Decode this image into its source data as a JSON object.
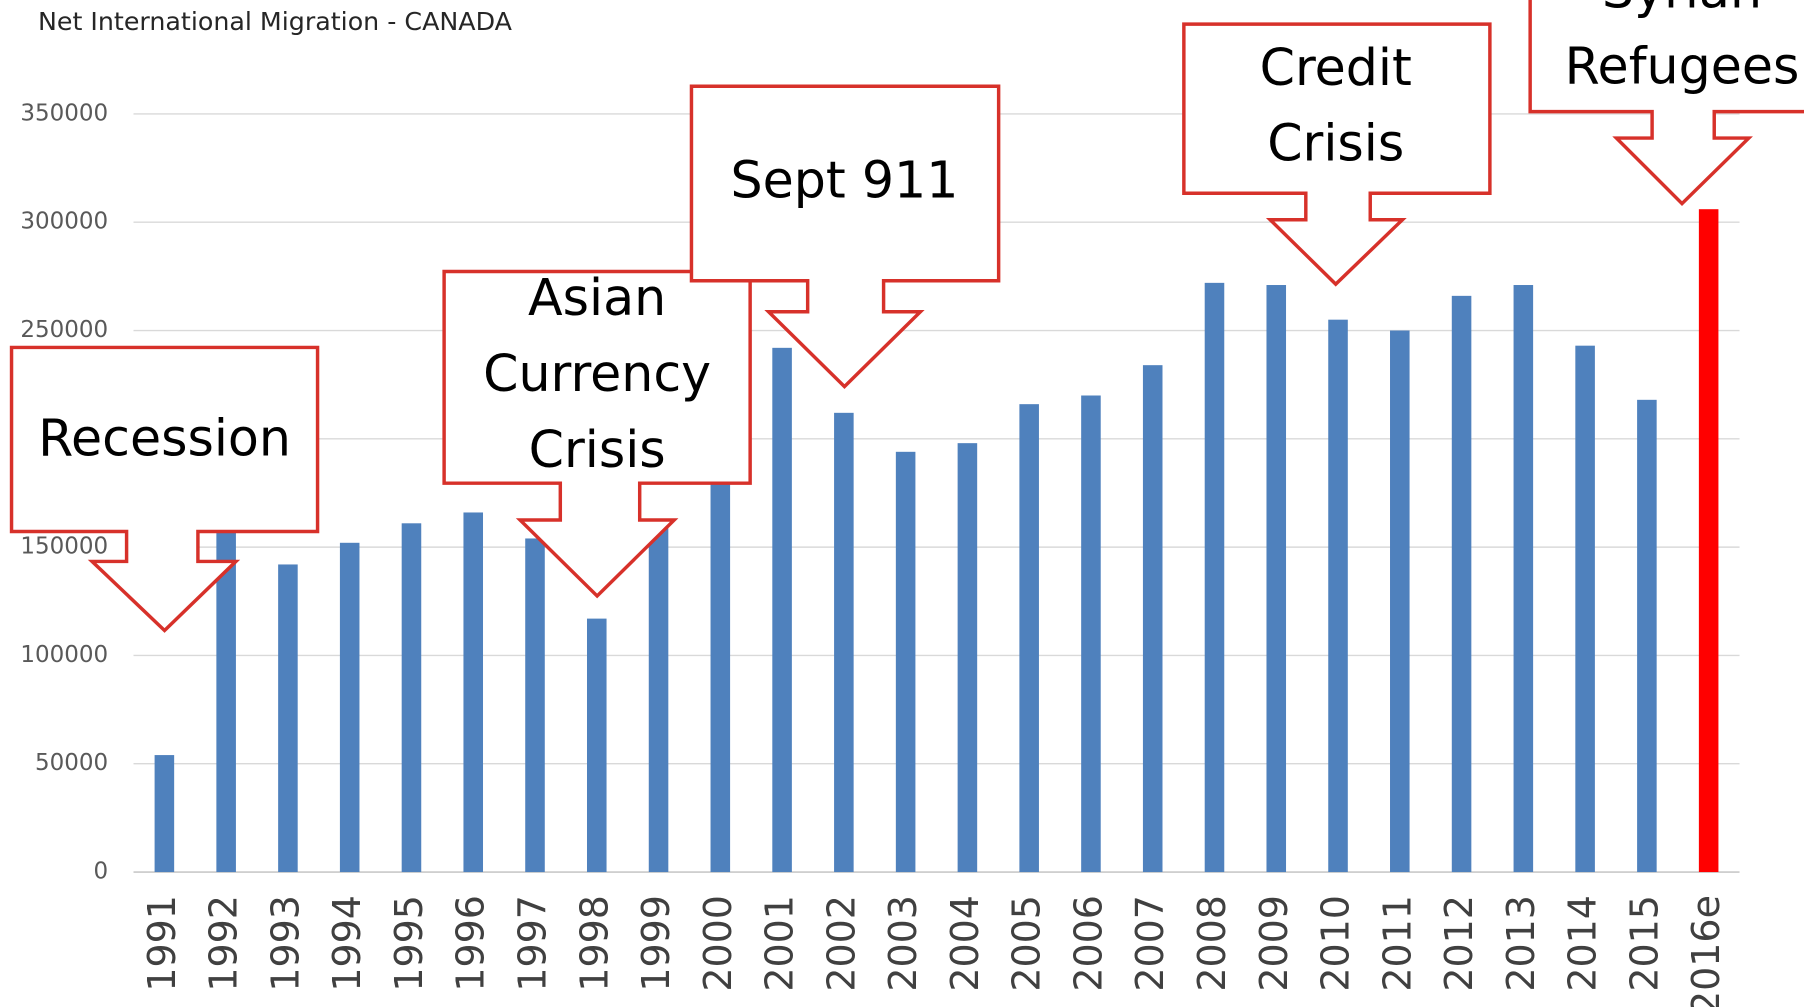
{
  "chart_data": {
    "type": "bar",
    "title": "Net International Migration  - CANADA",
    "categories": [
      "1991",
      "1992",
      "1993",
      "1994",
      "1995",
      "1996",
      "1997",
      "1998",
      "1999",
      "2000",
      "2001",
      "2002",
      "2003",
      "2004",
      "2005",
      "2006",
      "2007",
      "2008",
      "2009",
      "2010",
      "2011",
      "2012",
      "2013",
      "2014",
      "2015",
      "2016e"
    ],
    "values": [
      54000,
      158000,
      142000,
      152000,
      161000,
      166000,
      154000,
      117000,
      160000,
      190000,
      242000,
      212000,
      194000,
      198000,
      216000,
      220000,
      234000,
      272000,
      271000,
      255000,
      250000,
      266000,
      271000,
      243000,
      218000,
      306000
    ],
    "colors": [
      "#4f81bd",
      "#4f81bd",
      "#4f81bd",
      "#4f81bd",
      "#4f81bd",
      "#4f81bd",
      "#4f81bd",
      "#4f81bd",
      "#4f81bd",
      "#4f81bd",
      "#4f81bd",
      "#4f81bd",
      "#4f81bd",
      "#4f81bd",
      "#4f81bd",
      "#4f81bd",
      "#4f81bd",
      "#4f81bd",
      "#4f81bd",
      "#4f81bd",
      "#4f81bd",
      "#4f81bd",
      "#4f81bd",
      "#4f81bd",
      "#4f81bd",
      "#ff0000"
    ],
    "ylim": [
      0,
      350000
    ],
    "yticks": [
      0,
      50000,
      100000,
      150000,
      200000,
      250000,
      300000,
      350000
    ],
    "grid": true,
    "annotations": [
      {
        "lines": [
          "Recession"
        ]
      },
      {
        "lines": [
          "Asian",
          "Currency",
          "Crisis"
        ]
      },
      {
        "lines": [
          "Sept 911"
        ]
      },
      {
        "lines": [
          "Credit",
          "Crisis"
        ]
      },
      {
        "lines": [
          "Syrian",
          "Refugees"
        ]
      }
    ]
  }
}
